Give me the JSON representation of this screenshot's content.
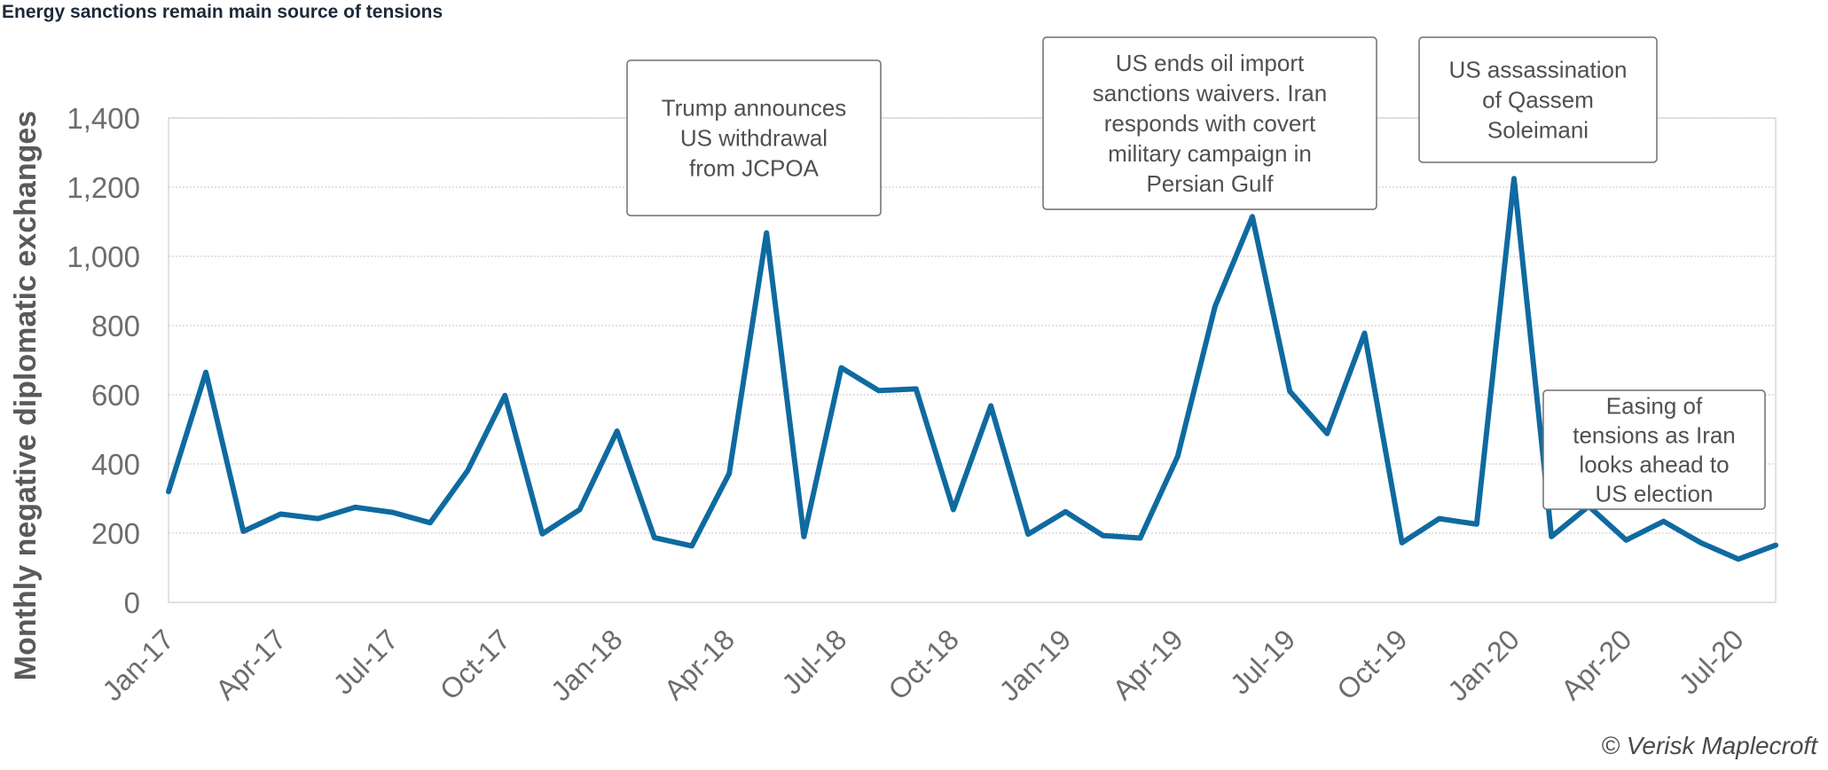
{
  "title": "Energy sanctions remain main source of tensions",
  "credit": "© Verisk Maplecroft",
  "chart_data": {
    "type": "line",
    "title": "Energy sanctions remain main source of tensions",
    "xlabel": "",
    "ylabel": "Monthly negative diplomatic exchanges",
    "ylim": [
      0,
      1400
    ],
    "yticks": [
      0,
      200,
      400,
      600,
      800,
      1000,
      1200,
      1400
    ],
    "ytick_labels": [
      "0",
      "200",
      "400",
      "600",
      "800",
      "1,000",
      "1,200",
      "1,400"
    ],
    "x": [
      "Jan-17",
      "Feb-17",
      "Mar-17",
      "Apr-17",
      "May-17",
      "Jun-17",
      "Jul-17",
      "Aug-17",
      "Sep-17",
      "Oct-17",
      "Nov-17",
      "Dec-17",
      "Jan-18",
      "Feb-18",
      "Mar-18",
      "Apr-18",
      "May-18",
      "Jun-18",
      "Jul-18",
      "Aug-18",
      "Sep-18",
      "Oct-18",
      "Nov-18",
      "Dec-18",
      "Jan-19",
      "Feb-19",
      "Mar-19",
      "Apr-19",
      "May-19",
      "Jun-19",
      "Jul-19",
      "Aug-19",
      "Sep-19",
      "Oct-19",
      "Nov-19",
      "Dec-19",
      "Jan-20",
      "Feb-20",
      "Mar-20",
      "Apr-20",
      "May-20",
      "Jun-20",
      "Jul-20",
      "Aug-20"
    ],
    "xtick_labels": [
      "Jan-17",
      "Apr-17",
      "Jul-17",
      "Oct-17",
      "Jan-18",
      "Apr-18",
      "Jul-18",
      "Oct-18",
      "Jan-19",
      "Apr-19",
      "Jul-19",
      "Oct-19",
      "Jan-20",
      "Apr-20",
      "Jul-20"
    ],
    "series": [
      {
        "color": "#0f6aa0",
        "values": [
          320,
          665,
          205,
          255,
          242,
          275,
          260,
          230,
          380,
          598,
          198,
          268,
          495,
          187,
          163,
          372,
          1068,
          190,
          678,
          612,
          617,
          268,
          568,
          197,
          262,
          193,
          186,
          422,
          855,
          1115,
          610,
          488,
          778,
          172,
          242,
          226,
          1225,
          190,
          278,
          180,
          234,
          172,
          125,
          165
        ]
      }
    ],
    "grid": true,
    "annotations": [
      {
        "text": "Trump announces\nUS withdrawal\nfrom JCPOA"
      },
      {
        "text": "US ends oil import\nsanctions waivers. Iran\nresponds with covert\nmilitary campaign in\nPersian Gulf"
      },
      {
        "text": "US assassination\nof Qassem\nSoleimani"
      },
      {
        "text": "Easing of\ntensions as Iran\nlooks ahead to\nUS election"
      }
    ]
  }
}
